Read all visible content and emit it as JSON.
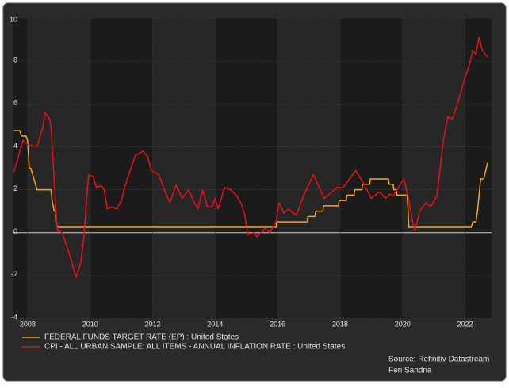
{
  "chart_data": {
    "type": "line",
    "series": [
      {
        "name": "FEDERAL FUNDS TARGET RATE (EP) : United States",
        "color": "#f5a623",
        "x": [
          2007.55,
          2007.75,
          2007.8,
          2007.95,
          2008.0,
          2008.05,
          2008.1,
          2008.25,
          2008.3,
          2008.4,
          2008.75,
          2008.78,
          2008.85,
          2008.88,
          2008.95,
          2015.95,
          2015.97,
          2016.95,
          2016.97,
          2017.2,
          2017.22,
          2017.45,
          2017.47,
          2017.95,
          2017.97,
          2018.2,
          2018.22,
          2018.45,
          2018.47,
          2018.7,
          2018.72,
          2018.95,
          2018.97,
          2019.55,
          2019.57,
          2019.7,
          2019.72,
          2019.8,
          2019.82,
          2020.15,
          2020.17,
          2020.2,
          2022.2,
          2022.25,
          2022.35,
          2022.4,
          2022.45,
          2022.5,
          2022.6,
          2022.72
        ],
        "values": [
          4.75,
          4.75,
          4.5,
          4.5,
          4.25,
          3.0,
          3.0,
          2.25,
          2.0,
          2.0,
          2.0,
          1.5,
          1.0,
          1.0,
          0.25,
          0.25,
          0.5,
          0.5,
          0.75,
          0.75,
          1.0,
          1.0,
          1.25,
          1.25,
          1.5,
          1.5,
          1.75,
          1.75,
          2.0,
          2.0,
          2.25,
          2.25,
          2.5,
          2.5,
          2.25,
          2.25,
          2.0,
          2.0,
          1.75,
          1.75,
          1.25,
          0.25,
          0.25,
          0.5,
          0.5,
          1.0,
          1.75,
          2.5,
          2.5,
          3.25
        ]
      },
      {
        "name": "CPI - ALL URBAN SAMPLE: ALL ITEMS - ANNUAL INFLATION RATE : United States",
        "color": "#e8101a",
        "x": [
          2007.55,
          2007.85,
          2008.0,
          2008.3,
          2008.5,
          2008.55,
          2008.7,
          2008.75,
          2008.8,
          2008.9,
          2008.95,
          2009.1,
          2009.2,
          2009.4,
          2009.45,
          2009.55,
          2009.7,
          2009.8,
          2009.9,
          2009.95,
          2010.1,
          2010.2,
          2010.35,
          2010.45,
          2010.55,
          2010.7,
          2010.85,
          2011.0,
          2011.1,
          2011.35,
          2011.45,
          2011.7,
          2011.85,
          2011.95,
          2012.2,
          2012.3,
          2012.45,
          2012.55,
          2012.75,
          2012.95,
          2013.15,
          2013.3,
          2013.45,
          2013.6,
          2013.75,
          2013.9,
          2014.0,
          2014.1,
          2014.3,
          2014.5,
          2014.7,
          2014.85,
          2014.95,
          2015.05,
          2015.25,
          2015.35,
          2015.6,
          2015.75,
          2015.95,
          2016.05,
          2016.2,
          2016.35,
          2016.6,
          2016.8,
          2016.95,
          2017.15,
          2017.3,
          2017.5,
          2017.75,
          2017.9,
          2018.1,
          2018.25,
          2018.5,
          2018.75,
          2019.0,
          2019.25,
          2019.45,
          2019.6,
          2019.7,
          2019.95,
          2020.05,
          2020.2,
          2020.35,
          2020.4,
          2020.55,
          2020.75,
          2020.9,
          2021.1,
          2021.3,
          2021.45,
          2021.6,
          2021.8,
          2021.95,
          2022.15,
          2022.25,
          2022.35,
          2022.45,
          2022.55,
          2022.72
        ],
        "values": [
          2.8,
          4.3,
          4.1,
          4.0,
          5.0,
          5.6,
          5.3,
          4.9,
          3.7,
          1.1,
          0.1,
          0.0,
          -0.4,
          -1.3,
          -1.6,
          -2.1,
          -1.4,
          -0.2,
          1.8,
          2.7,
          2.6,
          2.1,
          2.2,
          2.0,
          1.1,
          1.2,
          1.1,
          1.5,
          2.1,
          3.2,
          3.6,
          3.8,
          3.5,
          2.9,
          2.7,
          2.3,
          1.7,
          1.4,
          2.2,
          1.6,
          2.0,
          1.5,
          1.1,
          2.0,
          1.2,
          1.2,
          1.6,
          1.1,
          2.1,
          2.0,
          1.7,
          1.3,
          0.8,
          -0.1,
          0.0,
          -0.2,
          0.2,
          0.0,
          0.5,
          1.4,
          0.9,
          1.1,
          0.8,
          1.6,
          2.1,
          2.7,
          2.2,
          1.6,
          1.9,
          2.1,
          2.1,
          2.4,
          2.9,
          2.3,
          1.6,
          1.9,
          1.6,
          1.8,
          1.7,
          2.3,
          2.5,
          1.5,
          0.3,
          0.1,
          1.0,
          1.4,
          1.2,
          1.7,
          4.2,
          5.4,
          5.3,
          6.2,
          7.0,
          7.9,
          8.5,
          8.3,
          9.1,
          8.5,
          8.2
        ]
      }
    ],
    "xlim": [
      2007.52,
      2022.85
    ],
    "xticks": [
      2008,
      2010,
      2012,
      2014,
      2016,
      2018,
      2020,
      2022
    ],
    "ylim": [
      -4,
      10
    ],
    "yticks": [
      -4,
      -2,
      0,
      2,
      4,
      6,
      8,
      10
    ],
    "grid": true,
    "source": "Source: Refinitiv Datastream",
    "author": "Feri Sandria"
  }
}
